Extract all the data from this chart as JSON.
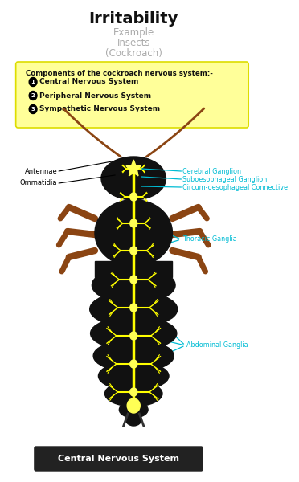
{
  "title": "Irritability",
  "subtitle1": "Example",
  "subtitle2": "Insects",
  "subtitle3": "(Cockroach)",
  "box_title": "Components of the cockroach nervous system:-",
  "components": [
    "Central Nervous System",
    "Peripheral Nervous System",
    "Sympathetic Nervous System"
  ],
  "labels_left": [
    "Antennae",
    "Ommatidia"
  ],
  "labels_right": [
    "Cerebral Ganglion",
    "Suboesophageal Ganglion",
    "Circum-oesophageal Connective",
    "Thoracic Ganglia",
    "Abdominal Ganglia"
  ],
  "footer": "Central Nervous System",
  "bg_color": "#ffffff",
  "box_color": "#ffff99",
  "box_edge_color": "#dddd00",
  "title_color": "#111111",
  "subtitle_color": "#aaaaaa",
  "label_color": "#000000",
  "cyan_color": "#00bcd4",
  "body_color": "#111111",
  "body_outline_color": "#333333",
  "leg_color": "#8B4513",
  "nerve_color": "#ffff00",
  "ganglion_color": "#ffff55",
  "footer_bg": "#222222",
  "footer_text": "#ffffff"
}
